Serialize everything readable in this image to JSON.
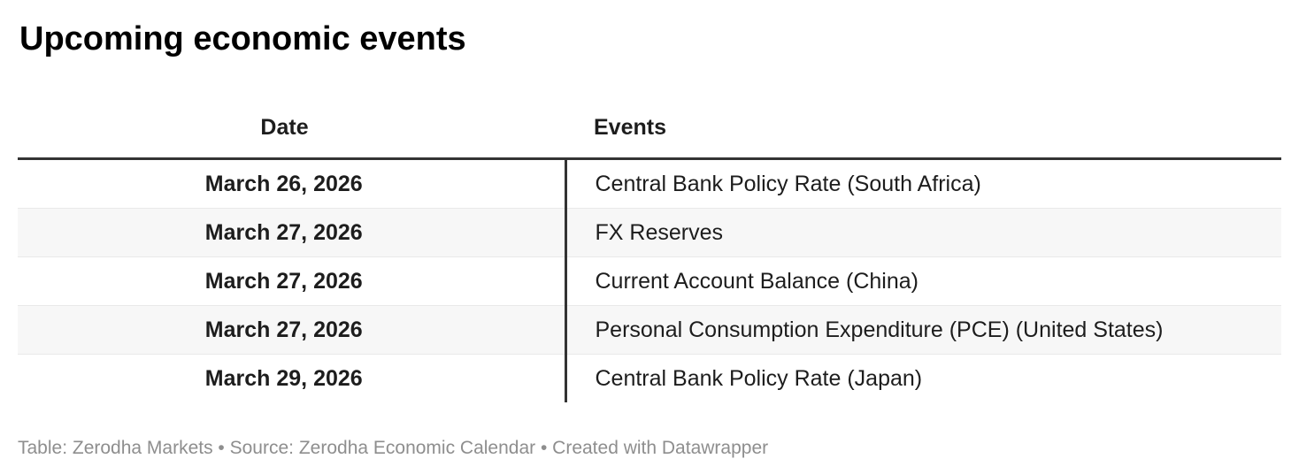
{
  "title": "Upcoming economic events",
  "chart_data": {
    "type": "table",
    "title": "Upcoming economic events",
    "columns": [
      "Date",
      "Events"
    ],
    "rows": [
      [
        "March 26, 2026",
        "Central Bank Policy Rate (South Africa)"
      ],
      [
        "March 27, 2026",
        "FX Reserves"
      ],
      [
        "March 27, 2026",
        "Current Account Balance (China)"
      ],
      [
        "March 27, 2026",
        "Personal Consumption Expenditure (PCE) (United States)"
      ],
      [
        "March 29, 2026",
        "Central Bank Policy Rate (Japan)"
      ]
    ],
    "layout_hints": {
      "date_column_alignment": "center",
      "events_column_alignment": "left",
      "alternating_row_shading": true,
      "header_rule": true,
      "column_divider": true
    }
  },
  "footer": {
    "attribution": "Table: Zerodha Markets • Source: Zerodha Economic Calendar • Created with Datawrapper"
  },
  "colors": {
    "title_text": "#000000",
    "body_text": "#1d1d1d",
    "header_rule": "#333333",
    "column_divider": "#333333",
    "alt_row_background": "#f7f7f7",
    "row_separator": "#e9e9e9",
    "footer_text": "#8e8e8e",
    "page_background": "#ffffff"
  }
}
